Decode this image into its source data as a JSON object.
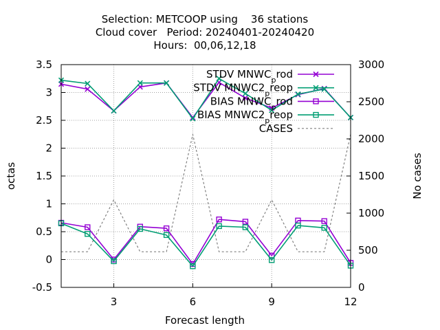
{
  "chart_data": {
    "type": "line",
    "title_lines": [
      "Selection: METCOOP using    36 stations",
      "Cloud cover   Period: 20240401-20240420",
      "Hours:  00,06,12,18"
    ],
    "xlabel": "Forecast length",
    "ylabel": "octas",
    "y2label": "No cases",
    "x": [
      1,
      2,
      3,
      4,
      5,
      6,
      7,
      8,
      9,
      10,
      11,
      12
    ],
    "xlim": [
      1,
      12
    ],
    "xticks": [
      3,
      6,
      9,
      12
    ],
    "ylim": [
      -0.5,
      3.5
    ],
    "yticks": [
      "-0.5",
      "0",
      "0.5",
      "1",
      "1.5",
      "2",
      "2.5",
      "3",
      "3.5"
    ],
    "y2lim": [
      0,
      3000
    ],
    "y2ticks": [
      "0",
      "500",
      "1000",
      "1500",
      "2000",
      "2500",
      "3000"
    ],
    "grid": true,
    "legend_position": "top-right",
    "series": [
      {
        "name": "STDV MNWC_prod",
        "legend": [
          "STDV MNWC",
          "p",
          "rod"
        ],
        "axis": "y1",
        "color": "#9400d3",
        "marker": "cross",
        "values": [
          3.15,
          3.06,
          2.67,
          3.1,
          3.17,
          2.55,
          3.18,
          2.9,
          2.72,
          2.96,
          3.07,
          2.55
        ]
      },
      {
        "name": "STDV MNWC2_preop",
        "legend": [
          "STDV MNWC2",
          "p",
          "reop"
        ],
        "axis": "y1",
        "color": "#009e73",
        "marker": "cross",
        "values": [
          3.22,
          3.16,
          2.67,
          3.17,
          3.17,
          2.53,
          3.25,
          2.98,
          2.68,
          2.97,
          3.06,
          2.55
        ]
      },
      {
        "name": "BIAS MNWC_prod",
        "legend": [
          "BIAS MNWC",
          "p",
          "rod"
        ],
        "axis": "y1",
        "color": "#9400d3",
        "marker": "square",
        "values": [
          0.66,
          0.58,
          0.0,
          0.59,
          0.56,
          -0.08,
          0.72,
          0.68,
          0.07,
          0.7,
          0.69,
          -0.06
        ]
      },
      {
        "name": "BIAS MNWC2_preop",
        "legend": [
          "BIAS MNWC2",
          "p",
          "reop"
        ],
        "axis": "y1",
        "color": "#009e73",
        "marker": "square",
        "values": [
          0.65,
          0.46,
          -0.03,
          0.55,
          0.44,
          -0.12,
          0.6,
          0.58,
          -0.01,
          0.61,
          0.57,
          -0.11
        ]
      },
      {
        "name": "CASES",
        "legend": [
          "CASES"
        ],
        "axis": "y2",
        "color": "#808080",
        "marker": "none",
        "dashed": true,
        "values": [
          480,
          480,
          1180,
          480,
          480,
          2060,
          480,
          480,
          1180,
          480,
          480,
          2060
        ]
      }
    ]
  }
}
